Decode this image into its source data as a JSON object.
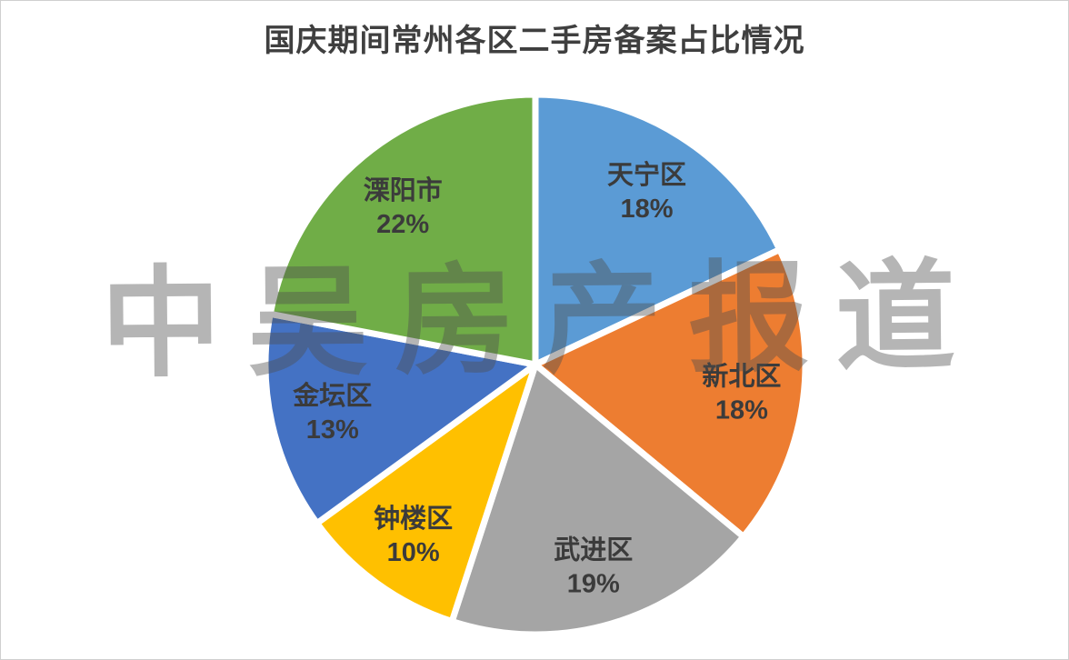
{
  "page": {
    "background": "#ffffff",
    "border_color": "#cfcfcf"
  },
  "watermark": {
    "text": "中吴房产报道",
    "chars": [
      "中",
      "吴",
      "房",
      "产",
      "报",
      "道"
    ],
    "color": "rgba(78,78,78,0.42)"
  },
  "chart_data": {
    "type": "pie",
    "title": "国庆期间常州各区二手房备案占比情况",
    "title_color": "#3f3f3f",
    "legend": "none",
    "direction": "clockwise",
    "start_angle_deg": 0,
    "slice_gap_color": "#ffffff",
    "label_style": "name and percent inside slices",
    "label_color": "#3b3b3b",
    "slices": [
      {
        "label": "天宁区",
        "value_pct": 18,
        "pct_label": "18%",
        "color": "#5B9BD5"
      },
      {
        "label": "新北区",
        "value_pct": 18,
        "pct_label": "18%",
        "color": "#ED7D31"
      },
      {
        "label": "武进区",
        "value_pct": 19,
        "pct_label": "19%",
        "color": "#A5A5A5"
      },
      {
        "label": "钟楼区",
        "value_pct": 10,
        "pct_label": "10%",
        "color": "#FFC000"
      },
      {
        "label": "金坛区",
        "value_pct": 13,
        "pct_label": "13%",
        "color": "#4472C4"
      },
      {
        "label": "溧阳市",
        "value_pct": 22,
        "pct_label": "22%",
        "color": "#70AD47"
      }
    ]
  }
}
